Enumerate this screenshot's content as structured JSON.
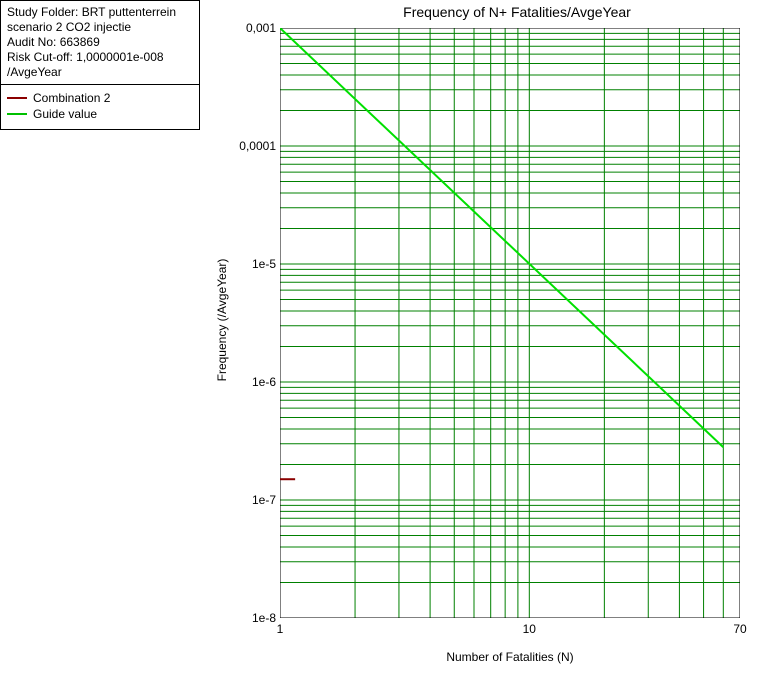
{
  "info": {
    "study_folder_label": "Study Folder:",
    "study_folder_value": "BRT puttenterrein scenario 2 CO2 injectie",
    "audit_no_label": "Audit No:",
    "audit_no_value": "663869",
    "risk_cutoff_label": "Risk Cut-off:",
    "risk_cutoff_value": "1,0000001e-008 /AvgeYear"
  },
  "legend": {
    "items": [
      {
        "label": "Combination 2",
        "color": "#8b0000"
      },
      {
        "label": "Guide value",
        "color": "#00c000"
      }
    ]
  },
  "chart": {
    "title": "Frequency of N+ Fatalities/AvgeYear",
    "xlabel": "Number of Fatalities (N)",
    "ylabel": "Frequency (/AvgeYear)",
    "type": "line-loglog",
    "x_scale": "log",
    "y_scale": "log",
    "xlim": [
      1,
      70
    ],
    "ylim": [
      1e-08,
      0.001
    ],
    "x_major_ticks": [
      1,
      10,
      70
    ],
    "x_tick_labels": [
      "1",
      "10",
      "70"
    ],
    "y_major_ticks": [
      1e-08,
      1e-07,
      1e-06,
      1e-05,
      0.0001,
      0.001
    ],
    "y_tick_labels": [
      "1e-8",
      "1e-7",
      "1e-6",
      "1e-5",
      "0,0001",
      "0,001"
    ],
    "grid_color": "#008000",
    "grid_stroke_width": 1,
    "background_color": "#ffffff",
    "axis_color": "#000000",
    "series": [
      {
        "name": "Guide value",
        "color": "#00e000",
        "stroke_width": 2,
        "points": [
          [
            1,
            0.001
          ],
          [
            60,
            2.8e-07
          ]
        ]
      },
      {
        "name": "Combination 2",
        "color": "#8b0000",
        "stroke_width": 2,
        "points": [
          [
            1,
            1.5e-07
          ],
          [
            1.15,
            1.5e-07
          ]
        ]
      }
    ]
  }
}
